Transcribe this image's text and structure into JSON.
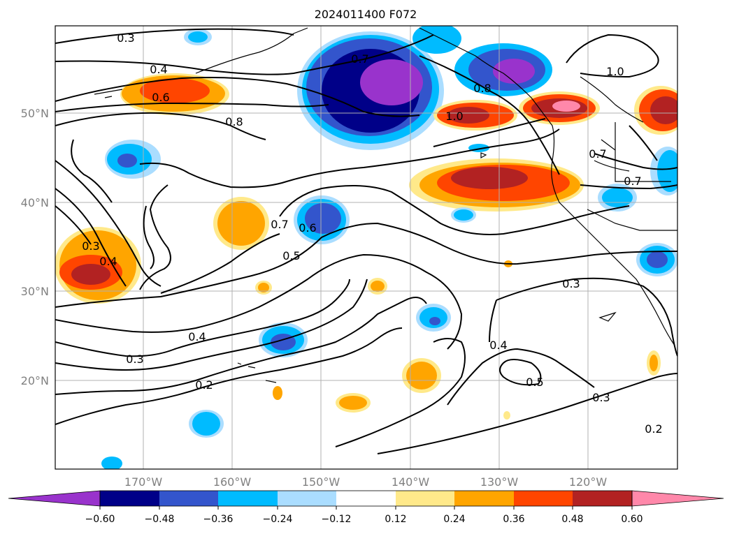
{
  "title": "2024011400 F072",
  "map": {
    "lon_labels": [
      "170°W",
      "160°W",
      "150°W",
      "140°W",
      "130°W",
      "120°W"
    ],
    "lat_labels": [
      "50°N",
      "40°N",
      "30°N",
      "20°N"
    ],
    "contour_labels": [
      "0.3",
      "0.4",
      "0.6",
      "0.8",
      "0.3",
      "0.4",
      "0.7",
      "0.6",
      "0.5",
      "0.4",
      "0.3",
      "0.2",
      "0.7",
      "0.8",
      "1.0",
      "1.0",
      "0.7",
      "0.7",
      "0.3",
      "0.4",
      "0.5",
      "0.3",
      "0.2"
    ]
  },
  "colorbar": {
    "tick_labels": [
      "−0.60",
      "−0.48",
      "−0.36",
      "−0.24",
      "−0.12",
      "0.12",
      "0.24",
      "0.36",
      "0.48",
      "0.60"
    ],
    "colors": [
      "#9933CC",
      "#000088",
      "#3355CC",
      "#00BBFF",
      "#AADDFF",
      "#FFFFFF",
      "#FFE98A",
      "#FFA500",
      "#FF4500",
      "#B22222",
      "#FF88AA"
    ]
  }
}
